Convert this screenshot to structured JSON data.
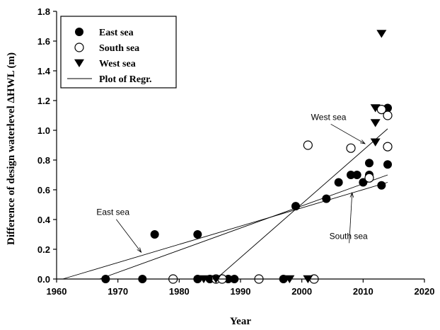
{
  "chart_data": {
    "type": "scatter",
    "title": "",
    "xlabel": "Year",
    "ylabel": "Difference of design waterlevel ΔHWL (m)",
    "xlim": [
      1960,
      2020
    ],
    "ylim": [
      0.0,
      1.8
    ],
    "xticks": [
      1960,
      1970,
      1980,
      1990,
      2000,
      2010,
      2020
    ],
    "yticks": [
      0.0,
      0.2,
      0.4,
      0.6,
      0.8,
      1.0,
      1.2,
      1.4,
      1.6,
      1.8
    ],
    "xtick_labels": [
      "1960",
      "1970",
      "1980",
      "1990",
      "2000",
      "2010",
      "2020"
    ],
    "ytick_labels": [
      "0.0",
      "0.2",
      "0.4",
      "0.6",
      "0.8",
      "1.0",
      "1.2",
      "1.4",
      "1.6",
      "1.8"
    ],
    "grid": false,
    "legend_position": "top-left",
    "series": [
      {
        "name": "East sea",
        "marker": "filled-circle",
        "points": [
          [
            1968,
            0.0
          ],
          [
            1974,
            0.0
          ],
          [
            1976,
            0.3
          ],
          [
            1979,
            0.0
          ],
          [
            1983,
            0.3
          ],
          [
            1983,
            0.0
          ],
          [
            1985,
            0.0
          ],
          [
            1988,
            0.0
          ],
          [
            1989,
            0.0
          ],
          [
            1997,
            0.0
          ],
          [
            1999,
            0.49
          ],
          [
            2004,
            0.54
          ],
          [
            2006,
            0.65
          ],
          [
            2008,
            0.7
          ],
          [
            2009,
            0.7
          ],
          [
            2010,
            0.65
          ],
          [
            2011,
            0.78
          ],
          [
            2011,
            0.7
          ],
          [
            2013,
            0.63
          ],
          [
            2014,
            0.77
          ],
          [
            2014,
            1.15
          ]
        ]
      },
      {
        "name": "South sea",
        "marker": "open-circle",
        "points": [
          [
            1979,
            0.0
          ],
          [
            1986,
            0.0
          ],
          [
            1987,
            0.0
          ],
          [
            1993,
            0.0
          ],
          [
            2001,
            0.9
          ],
          [
            2002,
            0.0
          ],
          [
            2008,
            0.88
          ],
          [
            2011,
            0.68
          ],
          [
            2013,
            1.14
          ],
          [
            2014,
            1.1
          ],
          [
            2014,
            0.89
          ]
        ]
      },
      {
        "name": "West sea",
        "marker": "filled-triangle-down",
        "points": [
          [
            1984,
            0.0
          ],
          [
            1986,
            0.0
          ],
          [
            1998,
            0.0
          ],
          [
            2001,
            0.0
          ],
          [
            2012,
            1.15
          ],
          [
            2012,
            1.05
          ],
          [
            2012,
            0.92
          ],
          [
            2013,
            1.65
          ]
        ]
      },
      {
        "name": "Plot of Regr.",
        "type": "line",
        "lines": [
          {
            "label": "East sea",
            "x": [
              1961,
              2014
            ],
            "y": [
              0.0,
              0.65
            ]
          },
          {
            "label": "South sea",
            "x": [
              1967,
              2014
            ],
            "y": [
              0.0,
              0.7
            ]
          },
          {
            "label": "West sea",
            "x": [
              1986,
              2014
            ],
            "y": [
              0.0,
              1.01
            ]
          }
        ]
      }
    ],
    "annotations": [
      {
        "text": "East sea",
        "x": 1966.5,
        "y": 0.43,
        "arrow_to": [
          1973.8,
          0.18
        ]
      },
      {
        "text": "West sea",
        "x": 2001.5,
        "y": 1.07,
        "arrow_to": [
          2010.3,
          0.91
        ]
      },
      {
        "text": "South sea",
        "x": 2004.5,
        "y": 0.27,
        "arrow_to": [
          2008.2,
          0.58
        ]
      }
    ]
  }
}
